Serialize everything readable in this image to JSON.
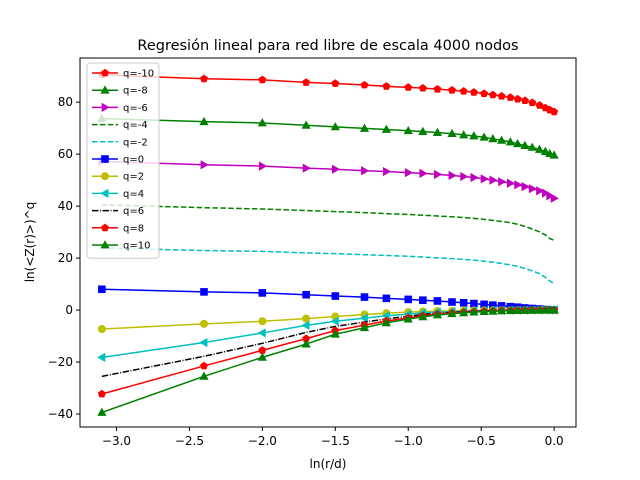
{
  "chart_data": {
    "type": "line",
    "title": "Regresión lineal para red libre de escala 4000 nodos",
    "xlabel": "ln(r/d)",
    "ylabel": "ln(<Z(r)>)^q",
    "xlim": [
      -3.25,
      0.15
    ],
    "ylim": [
      -45,
      97
    ],
    "xticks": [
      -3.0,
      -2.5,
      -2.0,
      -1.5,
      -1.0,
      -0.5,
      0.0
    ],
    "xtick_labels": [
      "−3.0",
      "−2.5",
      "−2.0",
      "−1.5",
      "−1.0",
      "−0.5",
      "0.0"
    ],
    "yticks": [
      -40,
      -20,
      0,
      20,
      40,
      60,
      80
    ],
    "ytick_labels": [
      "−40",
      "−20",
      "0",
      "20",
      "40",
      "60",
      "80"
    ],
    "grid": false,
    "legend_position": "top-left",
    "x": [
      -3.1,
      -2.4,
      -2.0,
      -1.7,
      -1.5,
      -1.3,
      -1.15,
      -1.0,
      -0.9,
      -0.8,
      -0.7,
      -0.62,
      -0.55,
      -0.48,
      -0.42,
      -0.36,
      -0.3,
      -0.25,
      -0.2,
      -0.15,
      -0.1,
      -0.06,
      -0.03,
      0.0
    ],
    "series": [
      {
        "name": "q=-10",
        "color": "#ff0000",
        "marker": "pentagon",
        "dash": "solid",
        "values": [
          90.5,
          89.0,
          88.6,
          87.6,
          87.2,
          86.6,
          86.1,
          85.7,
          85.4,
          85.0,
          84.6,
          84.2,
          83.8,
          83.3,
          82.8,
          82.3,
          81.8,
          81.2,
          80.6,
          79.8,
          78.8,
          77.8,
          77.0,
          76.3
        ]
      },
      {
        "name": "q=-8",
        "color": "#008000",
        "marker": "triangle-up",
        "dash": "solid",
        "values": [
          73.7,
          72.5,
          72.0,
          71.1,
          70.5,
          69.9,
          69.5,
          69.0,
          68.7,
          68.3,
          67.9,
          67.4,
          67.0,
          66.5,
          65.9,
          65.3,
          64.7,
          64.0,
          63.3,
          62.6,
          61.8,
          61.0,
          60.2,
          59.6
        ]
      },
      {
        "name": "q=-6",
        "color": "#bf00bf",
        "marker": "triangle-right",
        "dash": "solid",
        "values": [
          57.2,
          55.9,
          55.4,
          54.6,
          54.2,
          53.6,
          53.3,
          52.9,
          52.6,
          52.2,
          51.8,
          51.4,
          51.0,
          50.5,
          50.0,
          49.4,
          48.8,
          48.2,
          47.5,
          46.7,
          45.9,
          45.0,
          44.0,
          43.0
        ]
      },
      {
        "name": "q=-4",
        "color": "#008000",
        "marker": "none",
        "dash": "dashed",
        "values": [
          40.5,
          39.4,
          38.9,
          38.3,
          37.9,
          37.5,
          37.1,
          36.8,
          36.5,
          36.2,
          35.9,
          35.6,
          35.3,
          34.9,
          34.5,
          34.1,
          33.6,
          33.0,
          32.2,
          31.2,
          30.1,
          28.9,
          27.5,
          26.8
        ]
      },
      {
        "name": "q=-2",
        "color": "#00bfbf",
        "marker": "none",
        "dash": "dashed",
        "values": [
          23.9,
          22.9,
          22.6,
          22.0,
          21.7,
          21.3,
          21.0,
          20.7,
          20.4,
          20.1,
          19.8,
          19.5,
          19.2,
          18.8,
          18.4,
          17.9,
          17.4,
          16.8,
          16.0,
          15.1,
          14.0,
          12.6,
          11.2,
          10.2
        ]
      },
      {
        "name": "q=0",
        "color": "#0000ff",
        "marker": "square",
        "dash": "solid",
        "values": [
          8.0,
          7.0,
          6.6,
          5.9,
          5.4,
          5.0,
          4.5,
          4.1,
          3.8,
          3.5,
          3.1,
          2.8,
          2.5,
          2.2,
          1.9,
          1.6,
          1.3,
          1.1,
          0.8,
          0.6,
          0.4,
          0.2,
          0.1,
          0.0
        ]
      },
      {
        "name": "q=2",
        "color": "#bfbf00",
        "marker": "circle",
        "dash": "solid",
        "values": [
          -7.3,
          -5.3,
          -4.3,
          -3.3,
          -2.5,
          -1.7,
          -1.2,
          -0.8,
          -0.6,
          -0.4,
          -0.3,
          -0.2,
          -0.15,
          -0.1,
          -0.08,
          -0.06,
          -0.05,
          -0.04,
          -0.03,
          -0.02,
          -0.02,
          -0.01,
          0.0,
          0.0
        ]
      },
      {
        "name": "q=4",
        "color": "#00bfbf",
        "marker": "triangle-left",
        "dash": "solid",
        "values": [
          -18.2,
          -12.5,
          -8.8,
          -5.9,
          -4.3,
          -3.1,
          -2.2,
          -1.6,
          -1.1,
          -0.8,
          -0.6,
          -0.45,
          -0.35,
          -0.27,
          -0.2,
          -0.15,
          -0.11,
          -0.08,
          -0.06,
          -0.04,
          -0.03,
          -0.02,
          -0.01,
          0.0
        ]
      },
      {
        "name": "q=6",
        "color": "#000000",
        "marker": "none",
        "dash": "dashdot",
        "values": [
          -25.5,
          -17.8,
          -12.8,
          -8.6,
          -6.3,
          -4.6,
          -3.4,
          -2.4,
          -1.7,
          -1.2,
          -0.9,
          -0.7,
          -0.5,
          -0.4,
          -0.3,
          -0.22,
          -0.16,
          -0.12,
          -0.08,
          -0.05,
          -0.03,
          -0.02,
          -0.01,
          0.0
        ]
      },
      {
        "name": "q=8",
        "color": "#ff0000",
        "marker": "pentagon",
        "dash": "solid",
        "values": [
          -32.3,
          -21.5,
          -15.5,
          -11.0,
          -7.9,
          -5.8,
          -4.2,
          -3.0,
          -2.2,
          -1.6,
          -1.2,
          -0.9,
          -0.7,
          -0.5,
          -0.37,
          -0.27,
          -0.2,
          -0.14,
          -0.1,
          -0.07,
          -0.04,
          -0.02,
          -0.01,
          0.0
        ]
      },
      {
        "name": "q=10",
        "color": "#008000",
        "marker": "triangle-up",
        "dash": "solid",
        "values": [
          -39.4,
          -25.5,
          -18.2,
          -13.1,
          -9.3,
          -6.8,
          -4.9,
          -3.5,
          -2.6,
          -1.9,
          -1.4,
          -1.05,
          -0.8,
          -0.6,
          -0.44,
          -0.32,
          -0.23,
          -0.16,
          -0.11,
          -0.08,
          -0.05,
          -0.03,
          -0.01,
          0.0
        ]
      }
    ]
  }
}
